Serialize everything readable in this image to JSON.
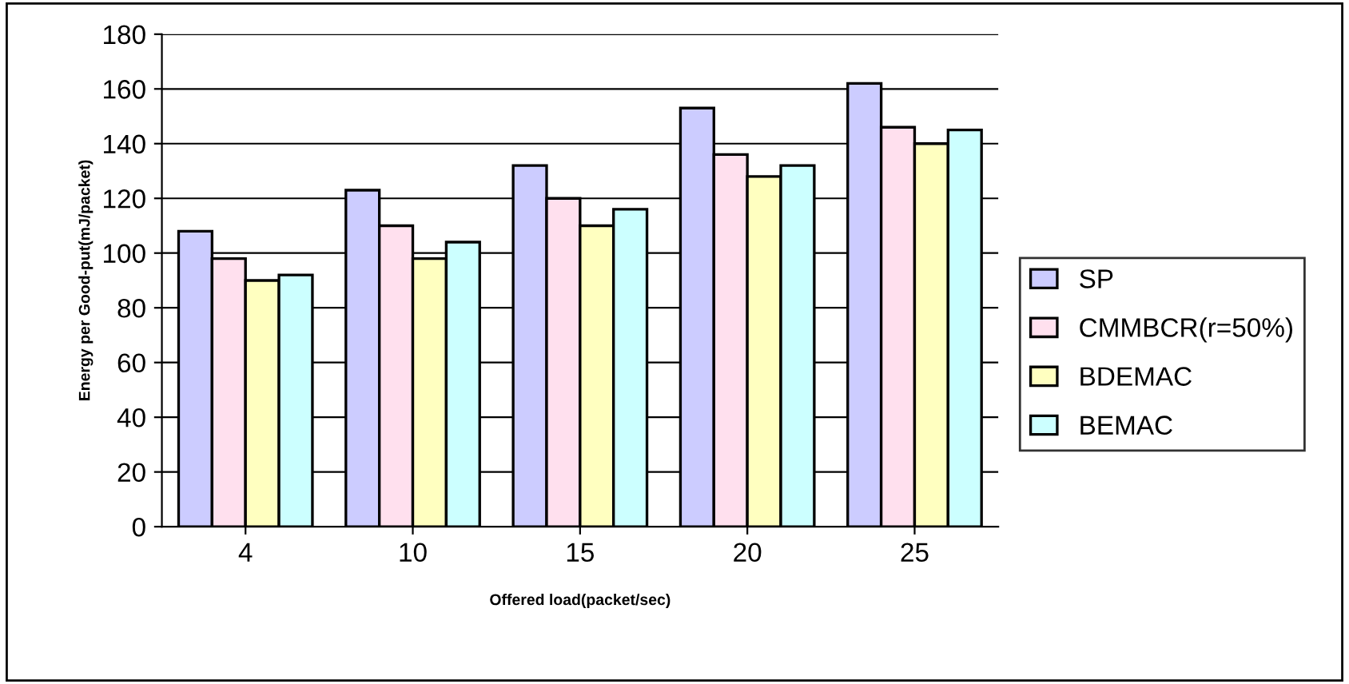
{
  "chart_data": {
    "type": "bar",
    "xlabel": "Offered load(packet/sec)",
    "ylabel": "Energy per Good-put(mJ/packet)",
    "categories": [
      "4",
      "10",
      "15",
      "20",
      "25"
    ],
    "series": [
      {
        "name": "SP",
        "color": "#ccccff",
        "values": [
          108,
          123,
          132,
          153,
          162
        ]
      },
      {
        "name": "CMMBCR(r=50%)",
        "color": "#ffe0ee",
        "values": [
          98,
          110,
          120,
          136,
          146
        ]
      },
      {
        "name": "BDEMAC",
        "color": "#ffffc0",
        "values": [
          90,
          98,
          110,
          128,
          140
        ]
      },
      {
        "name": "BEMAC",
        "color": "#ccffff",
        "values": [
          92,
          104,
          116,
          132,
          145
        ]
      }
    ],
    "ylim": [
      0,
      180
    ],
    "yticks": [
      0,
      20,
      40,
      60,
      80,
      100,
      120,
      140,
      160,
      180
    ],
    "grid": "y",
    "legend": "right"
  }
}
